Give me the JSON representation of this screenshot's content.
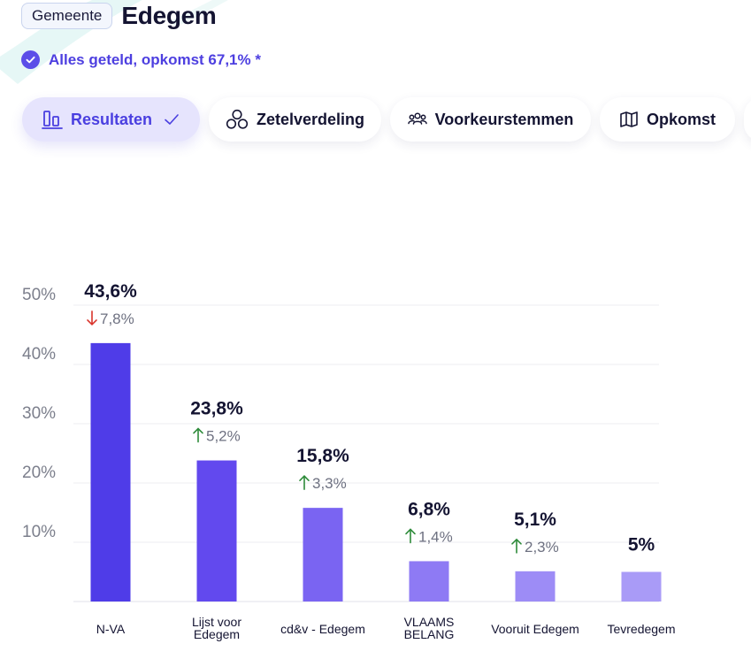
{
  "header": {
    "badge": "Gemeente",
    "title": "Edegem"
  },
  "status": {
    "text": "Alles geteld, opkomst 67,1% *"
  },
  "tabs": [
    {
      "label": "Resultaten",
      "icon": "bar-chart-icon",
      "active": true
    },
    {
      "label": "Zetelverdeling",
      "icon": "seats-circles-icon",
      "active": false
    },
    {
      "label": "Voorkeurstemmen",
      "icon": "people-icon",
      "active": false
    },
    {
      "label": "Opkomst",
      "icon": "map-icon",
      "active": false
    }
  ],
  "colors": {
    "accent": "#4d3fe0",
    "up": "#2e8b3a",
    "down": "#d9342b"
  },
  "chart_data": {
    "type": "bar",
    "categories": [
      "N-VA",
      "Lijst voor Edegem",
      "cd&v - Edegem",
      "VLAAMS BELANG",
      "Vooruit Edegem",
      "Tevredegem"
    ],
    "category_lines": [
      [
        "N-VA"
      ],
      [
        "Lijst voor",
        "Edegem"
      ],
      [
        "cd&v - Edegem"
      ],
      [
        "VLAAMS",
        "BELANG"
      ],
      [
        "Vooruit Edegem"
      ],
      [
        "Tevredegem"
      ]
    ],
    "values": [
      43.6,
      23.8,
      15.8,
      6.8,
      5.1,
      5
    ],
    "value_labels": [
      "43,6%",
      "23,8%",
      "15,8%",
      "6,8%",
      "5,1%",
      "5%"
    ],
    "changes": [
      {
        "direction": "down",
        "label": "7,8%"
      },
      {
        "direction": "up",
        "label": "5,2%"
      },
      {
        "direction": "up",
        "label": "3,3%"
      },
      {
        "direction": "up",
        "label": "1,4%"
      },
      {
        "direction": "up",
        "label": "2,3%"
      },
      null
    ],
    "bar_colors": [
      "#4f3ce8",
      "#6249ee",
      "#7a64f2",
      "#8e7af4",
      "#9d8cf6",
      "#a99bf7"
    ],
    "yticks": [
      10,
      20,
      30,
      40,
      50
    ],
    "ytick_labels": [
      "10%",
      "20%",
      "30%",
      "40%",
      "50%"
    ],
    "ylim": [
      0,
      50
    ],
    "grid": true
  }
}
